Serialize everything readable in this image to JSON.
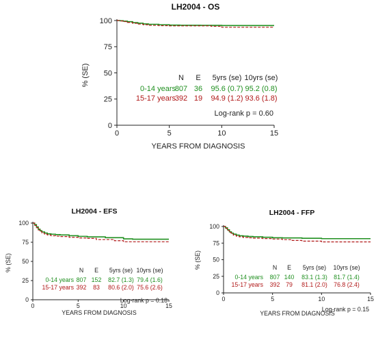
{
  "colors": {
    "green": "#1f8f1f",
    "red": "#b01818",
    "axis": "#222222"
  },
  "chart_data": [
    {
      "type": "line",
      "title": "LH2004 - OS",
      "xlabel": "YEARS FROM DIAGNOSIS",
      "ylabel": "% (SE)",
      "xlim": [
        0,
        15
      ],
      "ylim": [
        0,
        100
      ],
      "xticks": [
        "0",
        "5",
        "10",
        "15"
      ],
      "yticks": [
        "0",
        "25",
        "50",
        "75",
        "100"
      ],
      "table_headers": [
        "N",
        "E",
        "5yrs (se)",
        "10yrs (se)"
      ],
      "series": [
        {
          "name": "0-14 years",
          "color": "#1f8f1f",
          "dashed": false,
          "row": [
            "807",
            "36",
            "95.6 (0.7)",
            "95.2 (0.8)"
          ],
          "x": [
            0,
            0.3,
            0.6,
            1.0,
            1.5,
            2.0,
            2.5,
            3.0,
            4.0,
            5.0,
            6.0,
            8.0,
            10.0,
            12.0,
            15.0
          ],
          "y": [
            100,
            99.8,
            99.4,
            98.9,
            98.0,
            97.4,
            96.8,
            96.4,
            96.0,
            95.6,
            95.5,
            95.4,
            95.2,
            95.2,
            95.2
          ]
        },
        {
          "name": "15-17 years",
          "color": "#b01818",
          "dashed": true,
          "row": [
            "392",
            "19",
            "94.9 (1.2)",
            "93.6 (1.8)"
          ],
          "x": [
            0,
            0.3,
            0.6,
            1.0,
            1.5,
            2.0,
            2.5,
            3.0,
            4.0,
            5.0,
            7.0,
            9.0,
            10.0,
            12.0,
            15.0
          ],
          "y": [
            100,
            99.6,
            99.0,
            98.2,
            97.4,
            96.6,
            96.0,
            95.4,
            95.1,
            94.9,
            94.9,
            94.5,
            93.6,
            93.6,
            93.6
          ]
        }
      ],
      "logrank": "Log-rank p = 0.60"
    },
    {
      "type": "line",
      "title": "LH2004 - EFS",
      "xlabel": "YEARS FROM DIAGNOSIS",
      "ylabel": "% (SE)",
      "xlim": [
        0,
        15
      ],
      "ylim": [
        0,
        100
      ],
      "xticks": [
        "0",
        "5",
        "10",
        "15"
      ],
      "yticks": [
        "0",
        "25",
        "50",
        "75",
        "100"
      ],
      "table_headers": [
        "N",
        "E",
        "5yrs (se)",
        "10yrs (se)"
      ],
      "series": [
        {
          "name": "0-14 years",
          "color": "#1f8f1f",
          "dashed": false,
          "row": [
            "807",
            "152",
            "82.7 (1.3)",
            "79.4 (1.6)"
          ],
          "x": [
            0,
            0.2,
            0.4,
            0.6,
            0.8,
            1.0,
            1.3,
            1.6,
            2.0,
            2.5,
            3.0,
            4.0,
            5.0,
            6.0,
            8.0,
            10.0,
            11.0,
            15.0
          ],
          "y": [
            100,
            98,
            95,
            92,
            90,
            88.5,
            87,
            86,
            85.5,
            85,
            84.5,
            83.5,
            82.7,
            82,
            81,
            79.4,
            79,
            79
          ]
        },
        {
          "name": "15-17 years",
          "color": "#b01818",
          "dashed": true,
          "row": [
            "392",
            "83",
            "80.6 (2.0)",
            "75.6 (2.6)"
          ],
          "x": [
            0,
            0.2,
            0.4,
            0.6,
            0.8,
            1.0,
            1.3,
            1.6,
            2.0,
            2.5,
            3.0,
            4.0,
            5.0,
            6.0,
            7.0,
            9.0,
            10.0,
            11.0,
            15.0
          ],
          "y": [
            100,
            97,
            94,
            91,
            89,
            87,
            85.5,
            84.5,
            83.5,
            83,
            82.5,
            81.5,
            80.6,
            80,
            78.5,
            77,
            75.6,
            75.6,
            75.6
          ]
        }
      ],
      "logrank": "Log-rank p = 0.18"
    },
    {
      "type": "line",
      "title": "LH2004 - FFP",
      "xlabel": "YEARS FROM DIAGNOSIS",
      "ylabel": "% (SE)",
      "xlim": [
        0,
        15
      ],
      "ylim": [
        0,
        100
      ],
      "xticks": [
        "0",
        "5",
        "10",
        "15"
      ],
      "yticks": [
        "0",
        "25",
        "50",
        "75",
        "100"
      ],
      "table_headers": [
        "N",
        "E",
        "5yrs (se)",
        "10yrs (se)"
      ],
      "series": [
        {
          "name": "0-14 years",
          "color": "#1f8f1f",
          "dashed": false,
          "row": [
            "807",
            "140",
            "83.1 (1.3)",
            "81.7 (1.4)"
          ],
          "x": [
            0,
            0.2,
            0.4,
            0.6,
            0.8,
            1.0,
            1.3,
            1.6,
            2.0,
            2.5,
            3.0,
            4.0,
            5.0,
            6.0,
            8.0,
            10.0,
            15.0
          ],
          "y": [
            100,
            98,
            95,
            92,
            90,
            88.5,
            87,
            86,
            85.5,
            85,
            84.5,
            83.8,
            83.1,
            82.8,
            82.3,
            81.7,
            81.7
          ]
        },
        {
          "name": "15-17 years",
          "color": "#b01818",
          "dashed": true,
          "row": [
            "392",
            "79",
            "81.1 (2.0)",
            "76.8 (2.4)"
          ],
          "x": [
            0,
            0.2,
            0.4,
            0.6,
            0.8,
            1.0,
            1.3,
            1.6,
            2.0,
            2.5,
            3.0,
            4.0,
            5.0,
            6.0,
            7.0,
            8.0,
            10.0,
            15.0
          ],
          "y": [
            100,
            97,
            94,
            91,
            89,
            87,
            85.5,
            84.5,
            83.5,
            83,
            82.5,
            81.8,
            81.1,
            80.2,
            79,
            78,
            76.8,
            76.8
          ]
        }
      ],
      "logrank": "Log-rank p = 0.15"
    }
  ]
}
